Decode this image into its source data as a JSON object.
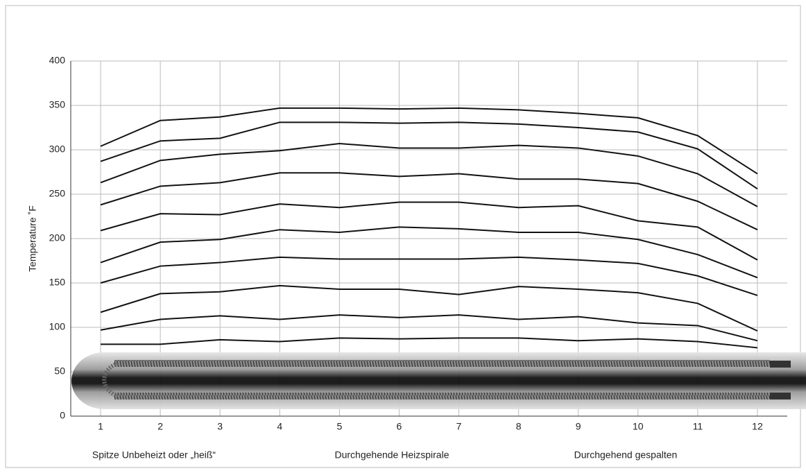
{
  "chart_data": {
    "type": "line",
    "y_label": "Temperature ˚F",
    "categories": [
      "1",
      "2",
      "3",
      "4",
      "5",
      "6",
      "7",
      "8",
      "9",
      "10",
      "11",
      "12"
    ],
    "series": [
      {
        "color": "#111111",
        "values": [
          304,
          333,
          337,
          347,
          347,
          346,
          347,
          345,
          341,
          336,
          316,
          273
        ]
      },
      {
        "color": "#111111",
        "values": [
          287,
          310,
          313,
          331,
          331,
          330,
          331,
          329,
          325,
          320,
          301,
          256
        ]
      },
      {
        "color": "#111111",
        "values": [
          263,
          288,
          295,
          299,
          307,
          302,
          302,
          305,
          302,
          293,
          273,
          236
        ]
      },
      {
        "color": "#111111",
        "values": [
          238,
          259,
          263,
          274,
          274,
          270,
          273,
          267,
          267,
          262,
          242,
          210
        ]
      },
      {
        "color": "#111111",
        "values": [
          209,
          228,
          227,
          239,
          235,
          241,
          241,
          235,
          237,
          220,
          213,
          176
        ]
      },
      {
        "color": "#111111",
        "values": [
          173,
          196,
          199,
          210,
          207,
          213,
          211,
          207,
          207,
          199,
          182,
          156
        ]
      },
      {
        "color": "#111111",
        "values": [
          150,
          169,
          173,
          179,
          177,
          177,
          177,
          179,
          176,
          172,
          158,
          136
        ]
      },
      {
        "color": "#111111",
        "values": [
          117,
          138,
          140,
          147,
          143,
          143,
          137,
          146,
          143,
          139,
          127,
          96
        ]
      },
      {
        "color": "#111111",
        "values": [
          97,
          109,
          113,
          109,
          114,
          111,
          114,
          109,
          112,
          105,
          102,
          85
        ]
      },
      {
        "color": "#111111",
        "values": [
          81,
          81,
          86,
          84,
          88,
          87,
          88,
          88,
          85,
          87,
          84,
          77
        ]
      }
    ],
    "ylim": [
      0,
      400
    ],
    "yticks": [
      0,
      50,
      100,
      150,
      200,
      250,
      300,
      350,
      400
    ],
    "grid": true,
    "annotations": [
      "Spitze Unbeheizt oder „heiß“",
      "Durchgehende Heizspirale",
      "Durchgehend gespalten"
    ]
  }
}
